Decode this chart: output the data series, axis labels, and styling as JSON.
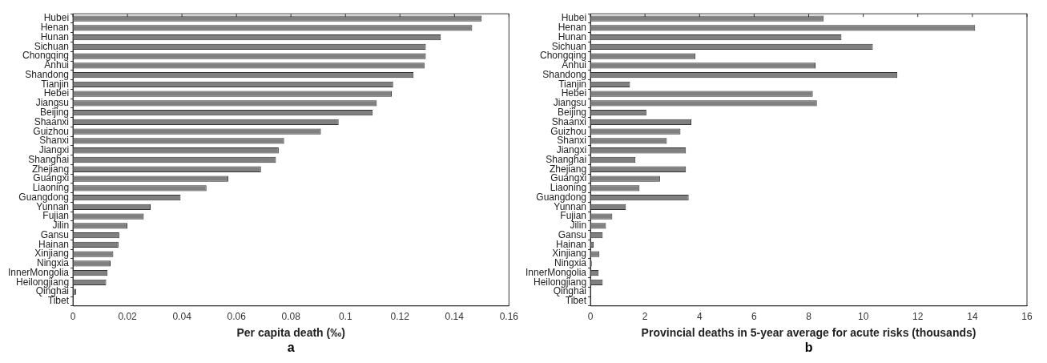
{
  "chart_data": [
    {
      "type": "bar",
      "orientation": "horizontal",
      "xlabel": "Per capita death (‰)",
      "annotations": [
        "a"
      ],
      "grid": false,
      "legend": false,
      "categories": [
        "Hubei",
        "Henan",
        "Hunan",
        "Sichuan",
        "Chongqing",
        "Anhui",
        "Shandong",
        "Tianjin",
        "Hebei",
        "Jiangsu",
        "Beijing",
        "Shaanxi",
        "Guizhou",
        "Shanxi",
        "Jiangxi",
        "Shanghai",
        "Zhejiang",
        "Guangxi",
        "Liaoning",
        "Guangdong",
        "Yunnan",
        "Fujian",
        "Jilin",
        "Gansu",
        "Hainan",
        "Xinjiang",
        "Ningxia",
        "InnerMongolia",
        "Heilongjiang",
        "Qinghai",
        "Tibet"
      ],
      "color": "#808080",
      "values": [
        0.15,
        0.1465,
        0.135,
        0.1295,
        0.1295,
        0.129,
        0.125,
        0.1175,
        0.117,
        0.1115,
        0.11,
        0.0975,
        0.091,
        0.0775,
        0.0755,
        0.0745,
        0.069,
        0.057,
        0.049,
        0.0395,
        0.0285,
        0.026,
        0.02,
        0.017,
        0.0167,
        0.0148,
        0.0138,
        0.0127,
        0.0122,
        0.0012,
        0
      ],
      "xlim": [
        0,
        0.16
      ],
      "xticks": [
        0,
        0.02,
        0.04,
        0.06,
        0.08,
        0.1,
        0.12,
        0.14,
        0.16
      ]
    },
    {
      "type": "bar",
      "orientation": "horizontal",
      "xlabel": "Provincial deaths in 5-year average for acute risks (thousands)",
      "annotations": [
        "b"
      ],
      "grid": false,
      "legend": false,
      "categories": [
        "Hubei",
        "Henan",
        "Hunan",
        "Sichuan",
        "Chongqing",
        "Anhui",
        "Shandong",
        "Tianjin",
        "Hebei",
        "Jiangsu",
        "Beijing",
        "Shaanxi",
        "Guizhou",
        "Shanxi",
        "Jiangxi",
        "Shanghai",
        "Zhejiang",
        "Guangxi",
        "Liaoning",
        "Guangdong",
        "Yunnan",
        "Fujian",
        "Jilin",
        "Gansu",
        "Hainan",
        "Xinjiang",
        "Ningxia",
        "InnerMongolia",
        "Heilongjiang",
        "Qinghai",
        "Tibet"
      ],
      "color": "#808080",
      "values": [
        8.55,
        14.1,
        9.2,
        10.35,
        3.85,
        8.25,
        11.25,
        1.45,
        8.15,
        8.3,
        2.05,
        3.7,
        3.3,
        2.8,
        3.5,
        1.65,
        3.5,
        2.55,
        1.8,
        3.6,
        1.3,
        0.8,
        0.57,
        0.45,
        0.12,
        0.33,
        0.05,
        0.3,
        0.45,
        0,
        0
      ],
      "xlim": [
        0,
        16
      ],
      "xticks": [
        0,
        2,
        4,
        6,
        8,
        10,
        12,
        14,
        16
      ]
    }
  ]
}
